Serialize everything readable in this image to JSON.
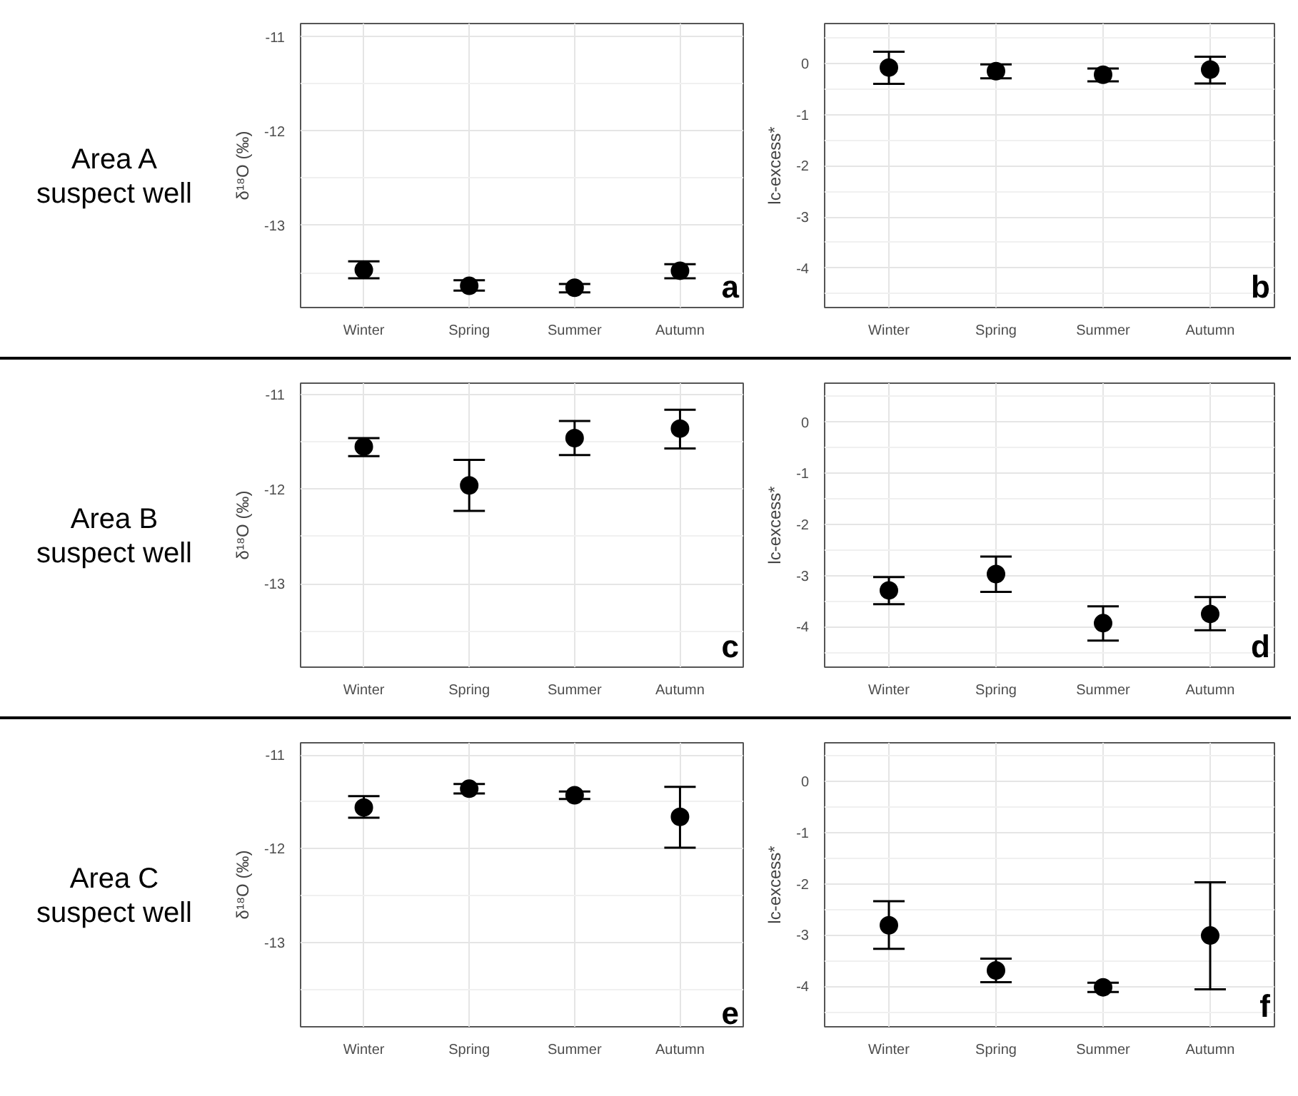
{
  "chart_data": [
    {
      "type": "scatter",
      "title": "Area A\nsuspect well",
      "ylabel": "δ¹⁸O (‰)",
      "categories": [
        "Winter",
        "Spring",
        "Summer",
        "Autumn"
      ],
      "color": "#000000",
      "marker": "circle",
      "grid": true,
      "values": [
        -13.47,
        -13.64,
        -13.66,
        -13.48
      ],
      "errors": [
        [
          -13.56,
          -13.38
        ],
        [
          -13.69,
          -13.58
        ],
        [
          -13.71,
          -13.62
        ],
        [
          -13.56,
          -13.41
        ]
      ],
      "ylim": [
        -13.87,
        -10.86
      ],
      "yticks": [
        -11,
        -12,
        -13
      ],
      "annotations": [
        "a"
      ]
    },
    {
      "type": "scatter",
      "ylabel": "lc-excess*",
      "categories": [
        "Winter",
        "Spring",
        "Summer",
        "Autumn"
      ],
      "color": "#000000",
      "marker": "circle",
      "grid": true,
      "values": [
        -0.08,
        -0.15,
        -0.22,
        -0.12
      ],
      "errors": [
        [
          -0.4,
          0.23
        ],
        [
          -0.29,
          -0.02
        ],
        [
          -0.35,
          -0.1
        ],
        [
          -0.39,
          0.13
        ]
      ],
      "ylim": [
        -4.77,
        0.78
      ],
      "yticks": [
        0,
        -1,
        -2,
        -3,
        -4
      ],
      "annotations": [
        "b"
      ]
    },
    {
      "type": "scatter",
      "title": "Area B\nsuspect well",
      "ylabel": "δ¹⁸O (‰)",
      "categories": [
        "Winter",
        "Spring",
        "Summer",
        "Autumn"
      ],
      "color": "#000000",
      "marker": "circle",
      "grid": true,
      "values": [
        -11.55,
        -11.96,
        -11.46,
        -11.36
      ],
      "errors": [
        [
          -11.65,
          -11.46
        ],
        [
          -12.23,
          -11.69
        ],
        [
          -11.64,
          -11.28
        ],
        [
          -11.57,
          -11.16
        ]
      ],
      "ylim": [
        -13.88,
        -10.88
      ],
      "yticks": [
        -11,
        -12,
        -13
      ],
      "annotations": [
        "c"
      ]
    },
    {
      "type": "scatter",
      "ylabel": "lc-excess*",
      "categories": [
        "Winter",
        "Spring",
        "Summer",
        "Autumn"
      ],
      "color": "#000000",
      "marker": "circle",
      "grid": true,
      "values": [
        -3.29,
        -2.97,
        -3.93,
        -3.75
      ],
      "errors": [
        [
          -3.56,
          -3.03
        ],
        [
          -3.32,
          -2.63
        ],
        [
          -4.27,
          -3.6
        ],
        [
          -4.07,
          -3.42
        ]
      ],
      "ylim": [
        -4.79,
        0.76
      ],
      "yticks": [
        0,
        -1,
        -2,
        -3,
        -4
      ],
      "annotations": [
        "d"
      ]
    },
    {
      "type": "scatter",
      "title": "Area C\nsuspect well",
      "ylabel": "δ¹⁸O (‰)",
      "categories": [
        "Winter",
        "Spring",
        "Summer",
        "Autumn"
      ],
      "color": "#000000",
      "marker": "circle",
      "grid": true,
      "values": [
        -11.56,
        -11.36,
        -11.43,
        -11.66
      ],
      "errors": [
        [
          -11.67,
          -11.44
        ],
        [
          -11.41,
          -11.31
        ],
        [
          -11.47,
          -11.39
        ],
        [
          -11.99,
          -11.34
        ]
      ],
      "ylim": [
        -13.9,
        -10.87
      ],
      "yticks": [
        -11,
        -12,
        -13
      ],
      "annotations": [
        "e"
      ]
    },
    {
      "type": "scatter",
      "ylabel": "lc-excess*",
      "categories": [
        "Winter",
        "Spring",
        "Summer",
        "Autumn"
      ],
      "color": "#000000",
      "marker": "circle",
      "grid": true,
      "values": [
        -2.81,
        -3.69,
        -4.02,
        -3.01
      ],
      "errors": [
        [
          -3.27,
          -2.34
        ],
        [
          -3.92,
          -3.46
        ],
        [
          -4.11,
          -3.93
        ],
        [
          -4.06,
          -1.97
        ]
      ],
      "ylim": [
        -4.79,
        0.75
      ],
      "yticks": [
        0,
        -1,
        -2,
        -3,
        -4
      ],
      "annotations": [
        "f"
      ]
    }
  ]
}
